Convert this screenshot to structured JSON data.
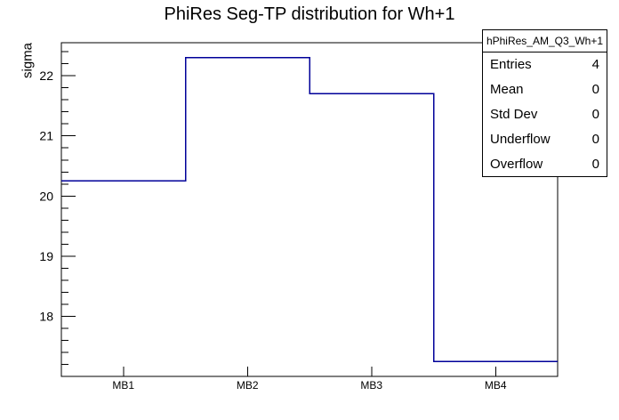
{
  "title": "PhiRes Seg-TP distribution for Wh+1",
  "chart_data": {
    "type": "bar",
    "style": "step-outline-histogram",
    "categories": [
      "MB1",
      "MB2",
      "MB3",
      "MB4"
    ],
    "values": [
      20.25,
      22.3,
      21.7,
      17.25
    ],
    "title": "PhiRes Seg-TP distribution for Wh+1",
    "xlabel": "",
    "ylabel": "sigma",
    "ylim": [
      17.0,
      22.55
    ],
    "y_major_ticks": [
      18,
      19,
      20,
      21,
      22
    ],
    "y_minor_tick_step": 0.2,
    "grid": false,
    "legend": "none",
    "line_color": "#000099",
    "frame_color": "#000000",
    "background_color": "#ffffff"
  },
  "stats_box": {
    "header": "hPhiRes_AM_Q3_Wh+1",
    "rows": [
      {
        "label": "Entries",
        "value": "4"
      },
      {
        "label": "Mean",
        "value": "0"
      },
      {
        "label": "Std Dev",
        "value": "0"
      },
      {
        "label": "Underflow",
        "value": "0"
      },
      {
        "label": "Overflow",
        "value": "0"
      }
    ]
  }
}
